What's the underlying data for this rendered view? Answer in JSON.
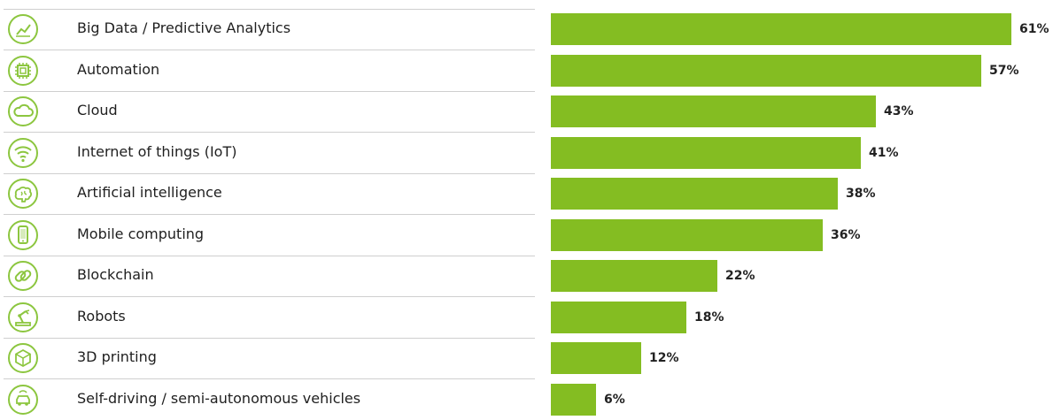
{
  "colors": {
    "bar": "#84bd22",
    "icon": "#8cc63f"
  },
  "chart_data": {
    "type": "bar",
    "orientation": "horizontal",
    "categories": [
      "Big Data / Predictive Analytics",
      "Automation",
      "Cloud",
      "Internet of things (IoT)",
      "Artificial intelligence",
      "Mobile computing",
      "Blockchain",
      "Robots",
      "3D printing",
      "Self-driving / semi-autonomous vehicles"
    ],
    "values": [
      61,
      57,
      43,
      41,
      38,
      36,
      22,
      18,
      12,
      6
    ],
    "value_labels": [
      "61%",
      "57%",
      "43%",
      "41%",
      "38%",
      "36%",
      "22%",
      "18%",
      "12%",
      "6%"
    ],
    "icons": [
      "line-chart-icon",
      "chip-icon",
      "cloud-icon",
      "wifi-icon",
      "brain-icon",
      "smartphone-icon",
      "chain-link-icon",
      "robot-arm-icon",
      "cube-icon",
      "car-icon"
    ],
    "xlim": [
      0,
      61
    ],
    "grid": false,
    "legend": "none"
  }
}
